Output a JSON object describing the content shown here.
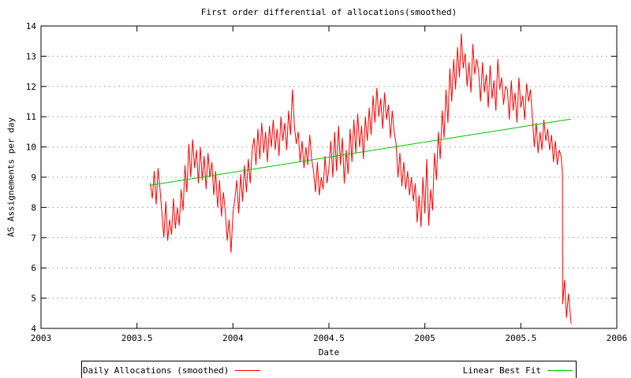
{
  "chart_data": {
    "type": "line",
    "title": "First order differential of allocations(smoothed)",
    "xlabel": "Date",
    "ylabel": "AS Assignements per day",
    "xlim": [
      2003,
      2006
    ],
    "ylim": [
      4,
      14
    ],
    "xticks": [
      2003,
      2003.5,
      2004,
      2004.5,
      2005,
      2005.5,
      2006
    ],
    "xtick_labels": [
      "2003",
      "2003.5",
      "2004",
      "2004.5",
      "2005",
      "2005.5",
      "2006"
    ],
    "yticks": [
      4,
      5,
      6,
      7,
      8,
      9,
      10,
      11,
      12,
      13,
      14
    ],
    "grid": "horizontal dashed gridlines at integer y values",
    "grid_y": [
      5,
      6,
      7,
      8,
      9,
      10,
      11,
      12,
      13
    ],
    "legend_position": "boxed row below plot",
    "colors": {
      "daily": "#ff0000",
      "fit": "#00c000",
      "grid": "#b0b0b0",
      "axis": "#000000"
    },
    "series": [
      {
        "name": "Daily Allocations (smoothed)",
        "color": "#ff0000",
        "x_start": 2003.57,
        "x_step": 0.01,
        "values": [
          8.8,
          8.3,
          9.2,
          8.1,
          9.3,
          8.6,
          7.8,
          7.0,
          8.2,
          6.9,
          7.6,
          7.1,
          8.3,
          7.3,
          8.0,
          7.4,
          8.6,
          7.9,
          9.4,
          8.5,
          10.1,
          9.0,
          10.25,
          9.3,
          9.9,
          8.8,
          10.0,
          8.9,
          9.7,
          8.6,
          9.8,
          9.0,
          9.5,
          8.4,
          9.2,
          8.0,
          8.9,
          7.7,
          8.5,
          7.9,
          6.9,
          7.6,
          6.5,
          7.8,
          8.3,
          8.9,
          7.8,
          9.1,
          8.2,
          9.4,
          8.5,
          9.6,
          8.8,
          9.9,
          10.3,
          9.4,
          10.6,
          9.6,
          10.8,
          9.8,
          10.5,
          9.5,
          10.7,
          10.0,
          10.9,
          9.9,
          10.6,
          9.7,
          11.0,
          10.2,
          10.8,
          9.9,
          11.2,
          10.4,
          11.9,
          10.7,
          10.1,
          10.5,
          9.5,
          10.2,
          9.3,
          10.0,
          9.4,
          10.4,
          9.6,
          9.2,
          8.5,
          9.5,
          8.4,
          9.0,
          8.6,
          9.7,
          8.8,
          9.3,
          10.2,
          9.0,
          10.5,
          9.2,
          10.7,
          9.4,
          10.3,
          8.8,
          9.9,
          9.1,
          10.6,
          9.5,
          10.9,
          9.8,
          11.1,
          10.0,
          10.7,
          9.6,
          11.0,
          10.2,
          11.3,
          10.4,
          11.7,
          10.8,
          11.95,
          11.0,
          11.6,
          10.6,
          11.8,
          10.9,
          11.4,
          10.3,
          11.2,
          10.5,
          10.1,
          9.0,
          9.8,
          8.7,
          9.5,
          8.6,
          9.2,
          8.4,
          9.0,
          8.2,
          8.8,
          7.5,
          8.4,
          7.35,
          9.0,
          7.8,
          9.6,
          7.4,
          8.6,
          7.9,
          9.8,
          8.9,
          10.5,
          9.6,
          11.2,
          10.3,
          11.9,
          10.8,
          12.6,
          11.5,
          12.9,
          11.9,
          13.3,
          12.3,
          13.75,
          12.6,
          13.1,
          12.0,
          12.8,
          11.8,
          13.4,
          12.4,
          12.9,
          12.5,
          11.5,
          12.8,
          11.8,
          12.4,
          11.3,
          12.7,
          11.6,
          12.2,
          11.2,
          12.9,
          11.9,
          12.3,
          11.4,
          12.0,
          11.9,
          10.9,
          12.2,
          11.2,
          11.8,
          10.8,
          12.3,
          11.3,
          11.7,
          10.9,
          12.1,
          11.5,
          11.9,
          11.0,
          10.0,
          10.8,
          9.8,
          10.5,
          9.9,
          10.9,
          10.2,
          10.6,
          9.9,
          10.4,
          9.5,
          10.2,
          9.4,
          9.9,
          9.7
        ],
        "tail_points": [
          [
            2005.717,
            9.1
          ],
          [
            2005.718,
            4.8
          ],
          [
            2005.728,
            5.6
          ],
          [
            2005.738,
            4.35
          ],
          [
            2005.748,
            5.15
          ],
          [
            2005.756,
            4.6
          ],
          [
            2005.762,
            4.15
          ]
        ]
      },
      {
        "name": "Linear Best Fit",
        "color": "#00c000",
        "points": [
          [
            2003.565,
            8.73
          ],
          [
            2005.76,
            10.92
          ]
        ]
      }
    ]
  }
}
